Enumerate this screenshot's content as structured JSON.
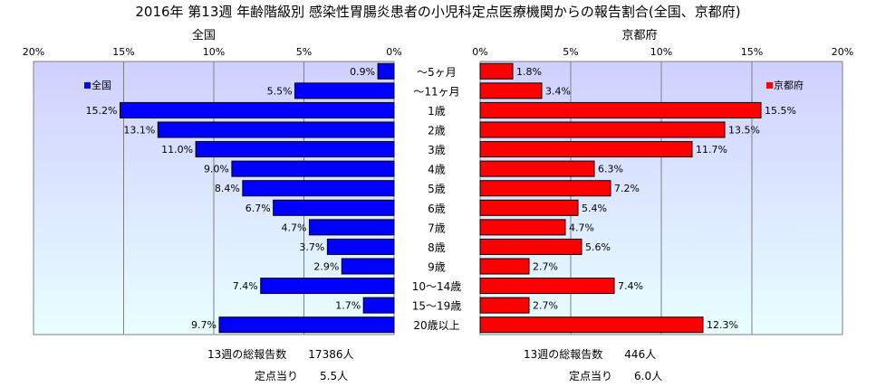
{
  "title": "2016年 第13週 年齢階級別 感染性胃腸炎患者の小児科定点医療機関からの報告割合(全国、京都府)",
  "colors": {
    "national": "#0000FF",
    "kyoto": "#FF0000",
    "plot_bg_top": "#D0D0FF",
    "plot_bg_bottom": "#E8FFFF"
  },
  "footer": {
    "national_total_label": "13週の総報告数",
    "national_total_value": "17386人",
    "national_per_label": "定点当り",
    "national_per_value": "5.5人",
    "kyoto_total_label": "13週の総報告数",
    "kyoto_total_value": "446人",
    "kyoto_per_label": "定点当り",
    "kyoto_per_value": "6.0人"
  },
  "chart_data": [
    {
      "type": "bar",
      "orientation": "horizontal",
      "direction": "reversed",
      "title": "全国",
      "categories": [
        "～5ヶ月",
        "～11ヶ月",
        "1歳",
        "2歳",
        "3歳",
        "4歳",
        "5歳",
        "6歳",
        "7歳",
        "8歳",
        "9歳",
        "10～14歳",
        "15～19歳",
        "20歳以上"
      ],
      "series": [
        {
          "name": "全国",
          "values": [
            0.9,
            5.5,
            15.2,
            13.1,
            11.0,
            9.0,
            8.4,
            6.7,
            4.7,
            3.7,
            2.9,
            7.4,
            1.7,
            9.7
          ]
        }
      ],
      "data_labels": [
        "0.9%",
        "5.5%",
        "15.2%",
        "13.1%",
        "11.0%",
        "9.0%",
        "8.4%",
        "6.7%",
        "4.7%",
        "3.7%",
        "2.9%",
        "7.4%",
        "1.7%",
        "9.7%"
      ],
      "xlim": [
        0,
        20
      ],
      "ticks": [
        "20%",
        "15%",
        "10%",
        "5%",
        "0%"
      ],
      "grid": true,
      "legend": "top-left"
    },
    {
      "type": "bar",
      "orientation": "horizontal",
      "title": "京都府",
      "categories": [
        "～5ヶ月",
        "～11ヶ月",
        "1歳",
        "2歳",
        "3歳",
        "4歳",
        "5歳",
        "6歳",
        "7歳",
        "8歳",
        "9歳",
        "10～14歳",
        "15～19歳",
        "20歳以上"
      ],
      "series": [
        {
          "name": "京都府",
          "values": [
            1.8,
            3.4,
            15.5,
            13.5,
            11.7,
            6.3,
            7.2,
            5.4,
            4.7,
            5.6,
            2.7,
            7.4,
            2.7,
            12.3
          ]
        }
      ],
      "data_labels": [
        "1.8%",
        "3.4%",
        "15.5%",
        "13.5%",
        "11.7%",
        "6.3%",
        "7.2%",
        "5.4%",
        "4.7%",
        "5.6%",
        "2.7%",
        "7.4%",
        "2.7%",
        "12.3%"
      ],
      "xlim": [
        0,
        20
      ],
      "ticks": [
        "0%",
        "5%",
        "10%",
        "15%",
        "20%"
      ],
      "grid": true,
      "legend": "top-right"
    }
  ]
}
